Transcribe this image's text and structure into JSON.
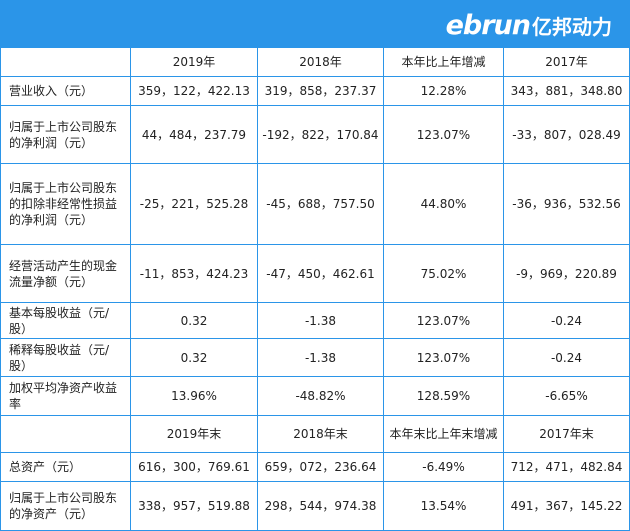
{
  "brand": {
    "latin": "ebrun",
    "chinese": "亿邦动力"
  },
  "table1": {
    "columns": [
      "",
      "2019年",
      "2018年",
      "本年比上年增减",
      "2017年"
    ],
    "rows": [
      {
        "label": "营业收入（元）",
        "v2019": "359，122，422.13",
        "v2018": "319，858，237.37",
        "change": "12.28%",
        "v2017": "343，881，348.80"
      },
      {
        "label": "归属于上市公司股东的净利润（元）",
        "v2019": "44，484，237.79",
        "v2018": "-192，822，170.84",
        "change": "123.07%",
        "v2017": "-33，807，028.49"
      },
      {
        "label": "归属于上市公司股东的扣除非经常性损益的净利润（元）",
        "v2019": "-25，221，525.28",
        "v2018": "-45，688，757.50",
        "change": "44.80%",
        "v2017": "-36，936，532.56"
      },
      {
        "label": "经营活动产生的现金流量净额（元）",
        "v2019": "-11，853，424.23",
        "v2018": "-47，450，462.61",
        "change": "75.02%",
        "v2017": "-9，969，220.89"
      },
      {
        "label": "基本每股收益（元/股）",
        "v2019": "0.32",
        "v2018": "-1.38",
        "change": "123.07%",
        "v2017": "-0.24"
      },
      {
        "label": "稀释每股收益（元/股）",
        "v2019": "0.32",
        "v2018": "-1.38",
        "change": "123.07%",
        "v2017": "-0.24"
      },
      {
        "label": "加权平均净资产收益率",
        "v2019": "13.96%",
        "v2018": "-48.82%",
        "change": "128.59%",
        "v2017": "-6.65%"
      }
    ]
  },
  "table2": {
    "columns": [
      "",
      "2019年末",
      "2018年末",
      "本年末比上年末增减",
      "2017年末"
    ],
    "rows": [
      {
        "label": "总资产（元）",
        "v2019": "616，300，769.61",
        "v2018": "659，072，236.64",
        "change": "-6.49%",
        "v2017": "712，471，482.84"
      },
      {
        "label": "归属于上市公司股东的净资产（元）",
        "v2019": "338，957，519.88",
        "v2018": "298，544，974.38",
        "change": "13.54%",
        "v2017": "491，367，145.22"
      }
    ]
  }
}
